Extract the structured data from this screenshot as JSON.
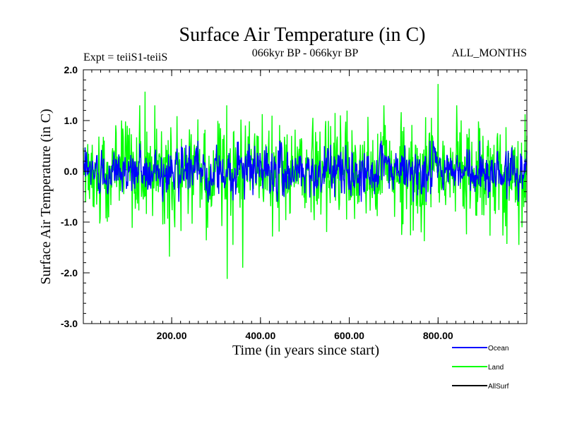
{
  "chart_data": {
    "type": "line",
    "title": "Surface Air Temperature (in C)",
    "subtitle_left": "Expt = teiiS1-teiiS",
    "subtitle_center": "066kyr BP - 066kyr BP",
    "subtitle_right": "ALL_MONTHS",
    "xlabel": "Time (in years since start)",
    "ylabel": "Surface Air Temperature (in C)",
    "xlim": [
      1,
      1000
    ],
    "ylim": [
      -3.0,
      2.0
    ],
    "xticks": [
      200,
      400,
      600,
      800
    ],
    "xtick_labels": [
      "200.00",
      "400.00",
      "600.00",
      "800.00"
    ],
    "yticks": [
      2.0,
      1.0,
      0.0,
      -1.0,
      -2.0,
      -3.0
    ],
    "ytick_labels": [
      "2.0",
      "1.0",
      "0.0",
      "-1.0",
      "-2.0",
      "-3.0"
    ],
    "legend_position": "bottom-right, below plot",
    "series": [
      {
        "name": "Land",
        "color": "#00ff00",
        "summary": {
          "mean": 0.0,
          "typical_min": -1.2,
          "typical_max": 1.1,
          "extremes": [
            [
              140,
              1.57
            ],
            [
              325,
              -2.12
            ],
            [
              800,
              1.72
            ],
            [
              360,
              -1.9
            ],
            [
              195,
              -1.68
            ]
          ]
        }
      },
      {
        "name": "Ocean",
        "color": "#0000ff",
        "summary": {
          "mean": 0.0,
          "typical_min": -0.5,
          "typical_max": 0.5
        }
      },
      {
        "name": "AllSurf",
        "color": "#000000",
        "summary": {
          "mean": 0.0
        }
      }
    ]
  }
}
